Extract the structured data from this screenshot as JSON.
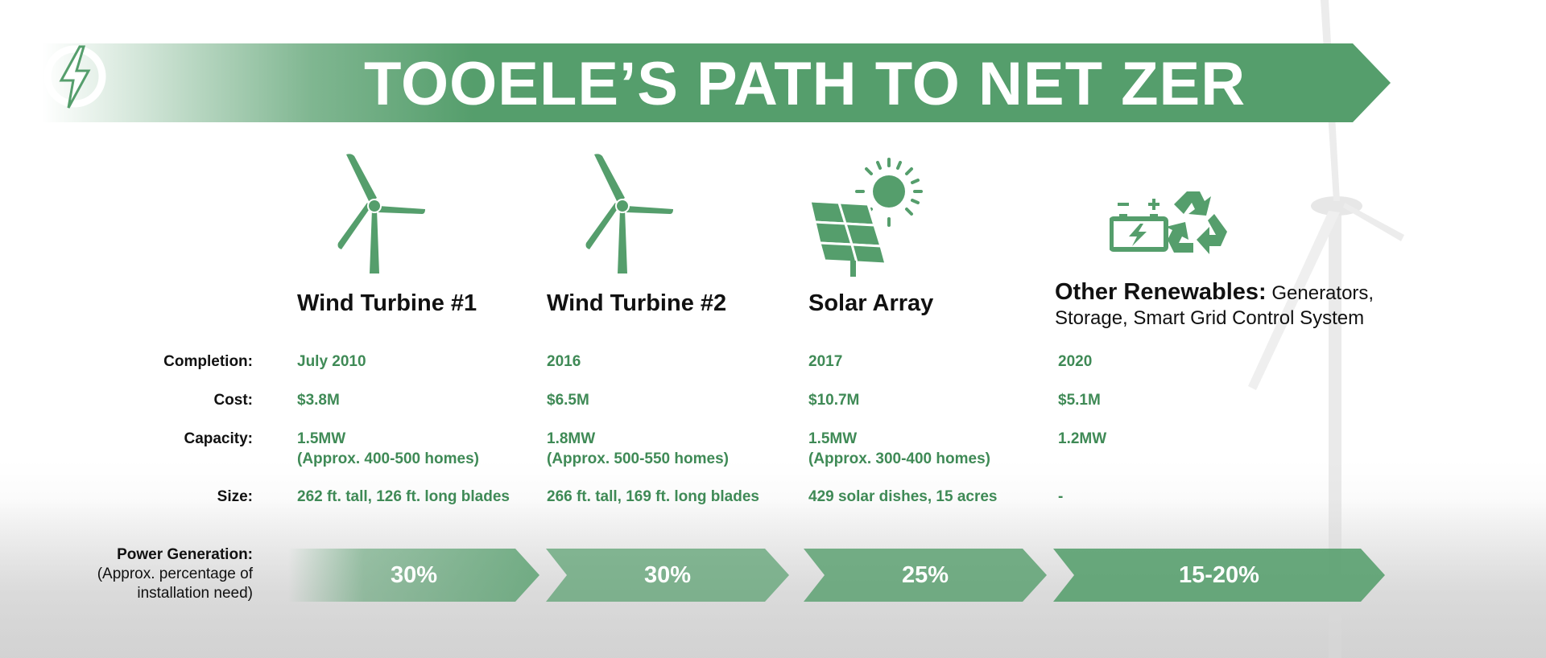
{
  "title": {
    "part1": "TOOELE’S PATH TO ",
    "part2": "NET ZER"
  },
  "colors": {
    "accent": "#559e6c",
    "text_green": "#3f8a56"
  },
  "row_labels": {
    "completion": "Completion:",
    "cost": "Cost:",
    "capacity": "Capacity:",
    "size": "Size:"
  },
  "power_label": {
    "heading": "Power Generation:",
    "sub1": "(Approx. percentage of",
    "sub2": "installation need)"
  },
  "columns": [
    {
      "icon": "wind-turbine-icon",
      "title": "Wind Turbine #1",
      "completion": "July 2010",
      "cost": "$3.8M",
      "capacity": "1.5MW",
      "capacity_note": "(Approx. 400-500 homes)",
      "size": "262 ft. tall, 126 ft. long blades",
      "power": "30%"
    },
    {
      "icon": "wind-turbine-icon",
      "title": "Wind Turbine #2",
      "completion": "2016",
      "cost": "$6.5M",
      "capacity": "1.8MW",
      "capacity_note": "(Approx. 500-550 homes)",
      "size": "266 ft. tall, 169 ft. long blades",
      "power": "30%"
    },
    {
      "icon": "solar-panel-icon",
      "title": "Solar Array",
      "completion": "2017",
      "cost": "$10.7M",
      "capacity": "1.5MW",
      "capacity_note": "(Approx. 300-400 homes)",
      "size": "429 solar dishes, 15 acres",
      "power": "25%"
    },
    {
      "icon": "battery-recycle-icon",
      "title_lead": "Other Renewables:",
      "title_rest": " Generators,",
      "title_line2": "Storage, Smart Grid Control System",
      "completion": "2020",
      "cost": "$5.1M",
      "capacity": "1.2MW",
      "capacity_note": "",
      "size": "-",
      "power": "15-20%"
    }
  ]
}
